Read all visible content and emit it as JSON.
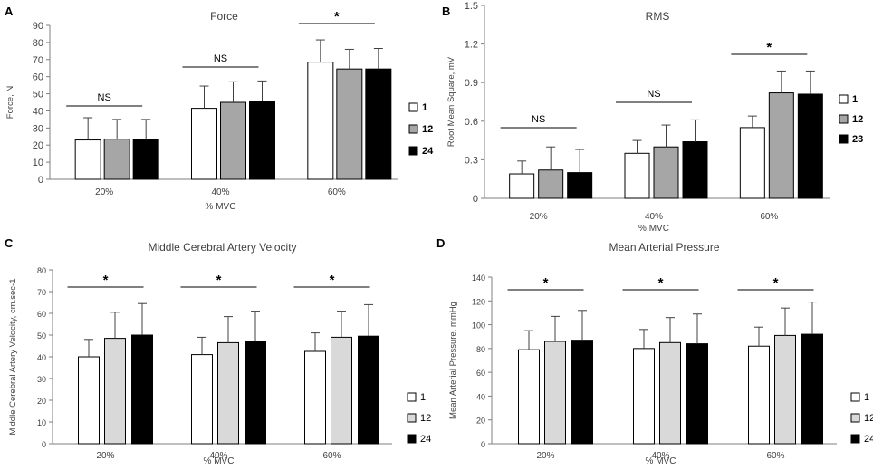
{
  "chart_data": [
    {
      "panel": "A",
      "type": "bar",
      "title": "Force",
      "xlabel": "% MVC",
      "ylabel": "Force, N",
      "ylim": [
        0,
        90
      ],
      "yticks": [
        "0",
        "10",
        "20",
        "30",
        "40",
        "50",
        "60",
        "70",
        "80",
        "90"
      ],
      "categories": [
        "20%",
        "40%",
        "60%"
      ],
      "series": [
        {
          "name": "1",
          "color": "#ffffff",
          "values": [
            23,
            41.5,
            68.5
          ],
          "errors": [
            13,
            13,
            13
          ]
        },
        {
          "name": "12",
          "color": "#a6a6a6",
          "values": [
            23.5,
            45,
            64.5
          ],
          "errors": [
            11.5,
            12,
            11.5
          ]
        },
        {
          "name": "24",
          "color": "#000000",
          "values": [
            23.5,
            45.5,
            64.5
          ],
          "errors": [
            11.5,
            12,
            12
          ]
        }
      ],
      "annotations": [
        "NS",
        "NS",
        "*"
      ]
    },
    {
      "panel": "B",
      "type": "bar",
      "title": "RMS",
      "xlabel": "% MVC",
      "ylabel": "Root Mean Square, mV",
      "ylim": [
        0,
        1.5
      ],
      "yticks": [
        "0",
        "0.3",
        "0.6",
        "0.9",
        "1.2",
        "1.5"
      ],
      "categories": [
        "20%",
        "40%",
        "60%"
      ],
      "series": [
        {
          "name": "1",
          "color": "#ffffff",
          "values": [
            0.19,
            0.35,
            0.55
          ],
          "errors": [
            0.1,
            0.1,
            0.09
          ]
        },
        {
          "name": "12",
          "color": "#a6a6a6",
          "values": [
            0.22,
            0.4,
            0.82
          ],
          "errors": [
            0.18,
            0.17,
            0.17
          ]
        },
        {
          "name": "23",
          "color": "#000000",
          "values": [
            0.2,
            0.44,
            0.81
          ],
          "errors": [
            0.18,
            0.17,
            0.18
          ]
        }
      ],
      "annotations": [
        "NS",
        "NS",
        "*"
      ]
    },
    {
      "panel": "C",
      "type": "bar",
      "title": "Middle Cerebral Artery Velocity",
      "xlabel": "% MVC",
      "ylabel": "Middle Cerebral Artery Velocity, cm.sec-1",
      "ylim": [
        0,
        80
      ],
      "yticks": [
        "0",
        "10",
        "20",
        "30",
        "40",
        "50",
        "60",
        "70",
        "80"
      ],
      "categories": [
        "20%",
        "40%",
        "60%"
      ],
      "series": [
        {
          "name": "1",
          "color": "#ffffff",
          "values": [
            40,
            41,
            42.5
          ],
          "errors": [
            8,
            8,
            8.5
          ]
        },
        {
          "name": "12",
          "color": "#d9d9d9",
          "values": [
            48.5,
            46.5,
            49
          ],
          "errors": [
            12,
            12,
            12
          ]
        },
        {
          "name": "24",
          "color": "#000000",
          "values": [
            50,
            47,
            49.5
          ],
          "errors": [
            14.5,
            14,
            14.5
          ]
        }
      ],
      "annotations": [
        "*",
        "*",
        "*"
      ]
    },
    {
      "panel": "D",
      "type": "bar",
      "title": "Mean Arterial Pressure",
      "xlabel": "% MVC",
      "ylabel": "Mean Arterial Pressure, mmHg",
      "ylim": [
        0,
        140
      ],
      "yticks": [
        "0",
        "20",
        "40",
        "60",
        "80",
        "100",
        "120",
        "140"
      ],
      "categories": [
        "20%",
        "40%",
        "60%"
      ],
      "series": [
        {
          "name": "1",
          "color": "#ffffff",
          "values": [
            79,
            80,
            82
          ],
          "errors": [
            16,
            16,
            16
          ]
        },
        {
          "name": "12",
          "color": "#d9d9d9",
          "values": [
            86,
            85,
            91
          ],
          "errors": [
            21,
            21,
            23
          ]
        },
        {
          "name": "24",
          "color": "#000000",
          "values": [
            87,
            84,
            92
          ],
          "errors": [
            25,
            25,
            27
          ]
        }
      ],
      "annotations": [
        "*",
        "*",
        "*"
      ]
    }
  ]
}
